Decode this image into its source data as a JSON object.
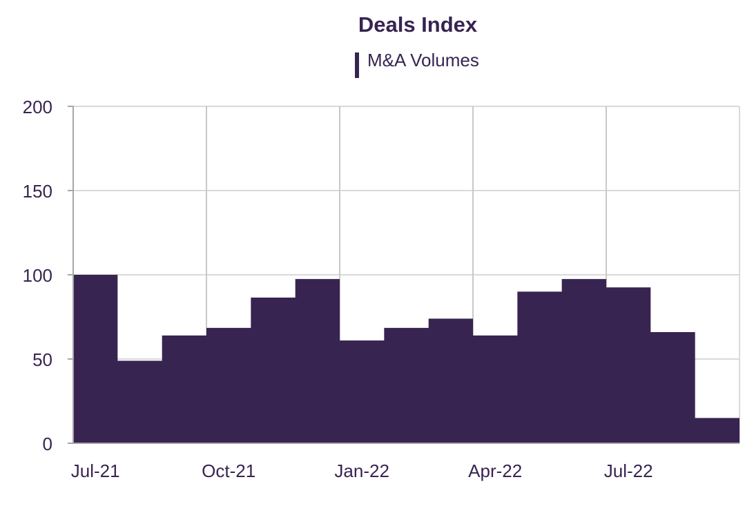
{
  "chart_data": {
    "type": "area",
    "step": true,
    "title": "Deals Index",
    "xlabel": "",
    "ylabel": "",
    "legend": {
      "position": "top-center",
      "entries": [
        "M&A Volumes"
      ]
    },
    "x": [
      "Jul-21",
      "Aug-21",
      "Sep-21",
      "Oct-21",
      "Nov-21",
      "Dec-21",
      "Jan-22",
      "Feb-22",
      "Mar-22",
      "Apr-22",
      "May-22",
      "Jun-22",
      "Jul-22",
      "Aug-22",
      "Sep-22"
    ],
    "series": [
      {
        "name": "M&A Volumes",
        "color": "#372451",
        "values": [
          100,
          49,
          64,
          68.5,
          86.5,
          97.5,
          61,
          68.5,
          74,
          64,
          90,
          97.5,
          92.5,
          66,
          15
        ]
      }
    ],
    "x_tick_labels": [
      "Jul-21",
      "Oct-21",
      "Jan-22",
      "Apr-22",
      "Jul-22"
    ],
    "y_tick_labels": [
      "0",
      "50",
      "100",
      "150",
      "200"
    ],
    "y_ticks": [
      0,
      50,
      100,
      150,
      200
    ],
    "ylim": [
      0,
      200
    ],
    "grid": true,
    "colors": {
      "fill": "#372451",
      "title": "#372451",
      "text": "#372451",
      "grid": "#d9d9d9",
      "axis": "#a6a6a6"
    }
  }
}
